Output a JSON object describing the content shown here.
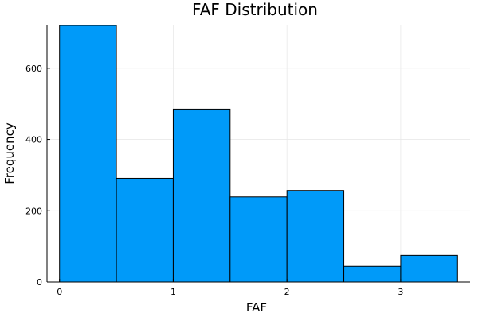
{
  "chart_data": {
    "type": "bar",
    "title": "FAF Distribution",
    "xlabel": "FAF",
    "ylabel": "Frequency",
    "bins": [
      {
        "x0": 0.0,
        "x1": 0.5,
        "count": 720
      },
      {
        "x0": 0.5,
        "x1": 1.0,
        "count": 291
      },
      {
        "x0": 1.0,
        "x1": 1.5,
        "count": 485
      },
      {
        "x0": 1.5,
        "x1": 2.0,
        "count": 239
      },
      {
        "x0": 2.0,
        "x1": 2.5,
        "count": 257
      },
      {
        "x0": 2.5,
        "x1": 3.0,
        "count": 44
      },
      {
        "x0": 3.0,
        "x1": 3.5,
        "count": 75
      }
    ],
    "xlim": [
      -0.11,
      3.61
    ],
    "ylim": [
      0,
      720
    ],
    "x_ticks": [
      0,
      1,
      2,
      3
    ],
    "y_ticks": [
      0,
      200,
      400,
      600
    ],
    "bar_color": "#009af9",
    "grid": true,
    "legend": "none"
  }
}
